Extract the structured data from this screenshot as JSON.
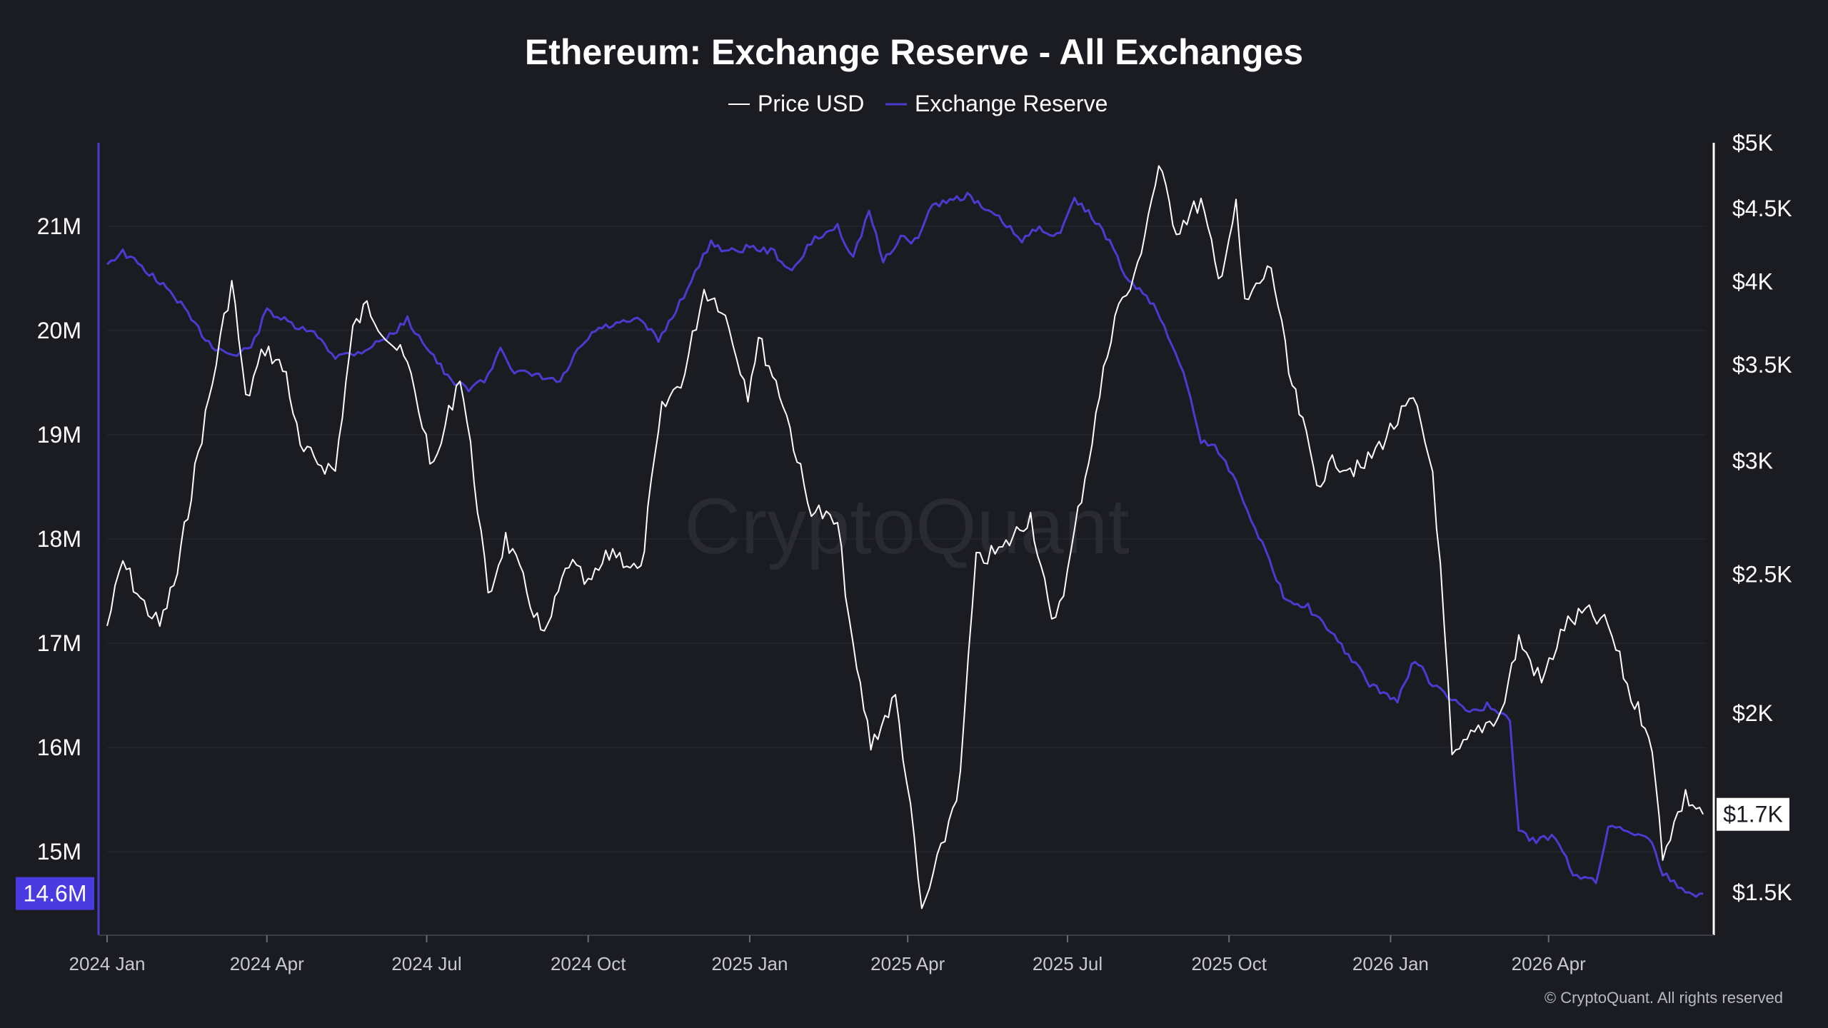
{
  "header": {
    "title": "Ethereum: Exchange Reserve - All Exchanges"
  },
  "watermark": "CryptoQuant",
  "credit": "© CryptoQuant. All rights reserved",
  "colors": {
    "background": "#1b1b22",
    "price": "#ffffff",
    "reserve": "#4a3bd1",
    "reserve_badge": "#4a3be0",
    "grid": "#2b2b34"
  },
  "chart_data": {
    "type": "line",
    "title": "Ethereum: Exchange Reserve - All Exchanges",
    "legend": {
      "placement": "top-center",
      "items": [
        "Price USD",
        "Exchange Reserve"
      ]
    },
    "x_ticks": [
      "2024 Jan",
      "2024 Apr",
      "2024 Jul",
      "2024 Oct",
      "2025 Jan",
      "2025 Apr",
      "2025 Jul",
      "2025 Oct",
      "2026 Jan",
      "2026 Apr"
    ],
    "x_range": [
      "2024-01-01",
      "2026-06-30"
    ],
    "left_axis": {
      "label": "",
      "ticks": [
        "15M",
        "16M",
        "17M",
        "18M",
        "19M",
        "20M",
        "21M"
      ],
      "tick_values": [
        15,
        16,
        17,
        18,
        19,
        20,
        21
      ],
      "range": [
        14.2,
        21.8
      ],
      "unit": "M",
      "current_badge": "14.6M"
    },
    "right_axis": {
      "label": "",
      "scale": "log",
      "ticks": [
        "$1.5K",
        "$2K",
        "$2.5K",
        "$3K",
        "$3.5K",
        "$4K",
        "$4.5K",
        "$5K"
      ],
      "tick_values": [
        1500,
        2000,
        2500,
        3000,
        3500,
        4000,
        4500,
        5000
      ],
      "range": [
        1400,
        5000
      ],
      "current_badge": "$1.7K"
    },
    "grid": true,
    "series": [
      {
        "name": "Price USD",
        "axis": "right",
        "points": [
          [
            "2024-01-01",
            2300
          ],
          [
            "2024-01-10",
            2550
          ],
          [
            "2024-01-20",
            2400
          ],
          [
            "2024-01-31",
            2300
          ],
          [
            "2024-02-10",
            2500
          ],
          [
            "2024-02-20",
            2950
          ],
          [
            "2024-03-01",
            3400
          ],
          [
            "2024-03-12",
            4000
          ],
          [
            "2024-03-20",
            3300
          ],
          [
            "2024-03-31",
            3600
          ],
          [
            "2024-04-12",
            3450
          ],
          [
            "2024-04-20",
            3050
          ],
          [
            "2024-04-30",
            3000
          ],
          [
            "2024-05-10",
            2950
          ],
          [
            "2024-05-20",
            3700
          ],
          [
            "2024-05-28",
            3850
          ],
          [
            "2024-06-10",
            3650
          ],
          [
            "2024-06-20",
            3500
          ],
          [
            "2024-07-05",
            2950
          ],
          [
            "2024-07-20",
            3450
          ],
          [
            "2024-08-05",
            2400
          ],
          [
            "2024-08-15",
            2650
          ],
          [
            "2024-09-06",
            2250
          ],
          [
            "2024-09-20",
            2550
          ],
          [
            "2024-10-01",
            2450
          ],
          [
            "2024-10-15",
            2600
          ],
          [
            "2024-10-31",
            2500
          ],
          [
            "2024-11-12",
            3250
          ],
          [
            "2024-11-25",
            3450
          ],
          [
            "2024-12-06",
            3950
          ],
          [
            "2024-12-16",
            3850
          ],
          [
            "2024-12-31",
            3350
          ],
          [
            "2025-01-06",
            3650
          ],
          [
            "2025-01-20",
            3300
          ],
          [
            "2025-02-03",
            2800
          ],
          [
            "2025-02-20",
            2700
          ],
          [
            "2025-03-01",
            2200
          ],
          [
            "2025-03-11",
            1900
          ],
          [
            "2025-03-25",
            2050
          ],
          [
            "2025-04-09",
            1450
          ],
          [
            "2025-04-20",
            1600
          ],
          [
            "2025-05-01",
            1800
          ],
          [
            "2025-05-10",
            2550
          ],
          [
            "2025-05-25",
            2600
          ],
          [
            "2025-06-10",
            2750
          ],
          [
            "2025-06-22",
            2300
          ],
          [
            "2025-07-01",
            2500
          ],
          [
            "2025-07-15",
            3100
          ],
          [
            "2025-07-28",
            3800
          ],
          [
            "2025-08-08",
            4000
          ],
          [
            "2025-08-22",
            4800
          ],
          [
            "2025-09-01",
            4350
          ],
          [
            "2025-09-15",
            4550
          ],
          [
            "2025-09-25",
            4000
          ],
          [
            "2025-10-05",
            4500
          ],
          [
            "2025-10-10",
            3850
          ],
          [
            "2025-10-25",
            4100
          ],
          [
            "2025-11-04",
            3450
          ],
          [
            "2025-11-20",
            2900
          ],
          [
            "2025-12-01",
            3000
          ],
          [
            "2025-12-15",
            2950
          ],
          [
            "2026-01-05",
            3200
          ],
          [
            "2026-01-14",
            3300
          ],
          [
            "2026-01-25",
            2950
          ],
          [
            "2026-02-05",
            1850
          ],
          [
            "2026-02-20",
            1950
          ],
          [
            "2026-03-05",
            2000
          ],
          [
            "2026-03-15",
            2250
          ],
          [
            "2026-03-28",
            2100
          ],
          [
            "2026-04-10",
            2300
          ],
          [
            "2026-04-22",
            2350
          ],
          [
            "2026-05-05",
            2300
          ],
          [
            "2026-05-18",
            2050
          ],
          [
            "2026-05-28",
            1950
          ],
          [
            "2026-06-05",
            1600
          ],
          [
            "2026-06-18",
            1750
          ],
          [
            "2026-06-28",
            1700
          ]
        ]
      },
      {
        "name": "Exchange Reserve",
        "axis": "left",
        "points": [
          [
            "2024-01-01",
            20.65
          ],
          [
            "2024-01-10",
            20.75
          ],
          [
            "2024-01-25",
            20.55
          ],
          [
            "2024-02-10",
            20.3
          ],
          [
            "2024-02-20",
            20.05
          ],
          [
            "2024-03-01",
            19.85
          ],
          [
            "2024-03-15",
            19.75
          ],
          [
            "2024-03-25",
            19.9
          ],
          [
            "2024-04-01",
            20.2
          ],
          [
            "2024-04-15",
            20.05
          ],
          [
            "2024-04-30",
            19.95
          ],
          [
            "2024-05-10",
            19.75
          ],
          [
            "2024-05-25",
            19.8
          ],
          [
            "2024-06-10",
            19.95
          ],
          [
            "2024-06-20",
            20.1
          ],
          [
            "2024-07-01",
            19.85
          ],
          [
            "2024-07-15",
            19.5
          ],
          [
            "2024-07-25",
            19.45
          ],
          [
            "2024-08-05",
            19.55
          ],
          [
            "2024-08-12",
            19.85
          ],
          [
            "2024-08-20",
            19.6
          ],
          [
            "2024-09-05",
            19.55
          ],
          [
            "2024-09-15",
            19.5
          ],
          [
            "2024-09-25",
            19.8
          ],
          [
            "2024-10-05",
            20.0
          ],
          [
            "2024-10-15",
            20.05
          ],
          [
            "2024-10-31",
            20.1
          ],
          [
            "2024-11-10",
            19.9
          ],
          [
            "2024-11-20",
            20.2
          ],
          [
            "2024-12-01",
            20.55
          ],
          [
            "2024-12-10",
            20.85
          ],
          [
            "2024-12-20",
            20.75
          ],
          [
            "2025-01-01",
            20.8
          ],
          [
            "2025-01-15",
            20.75
          ],
          [
            "2025-01-25",
            20.55
          ],
          [
            "2025-02-05",
            20.85
          ],
          [
            "2025-02-20",
            21.0
          ],
          [
            "2025-03-01",
            20.7
          ],
          [
            "2025-03-10",
            21.15
          ],
          [
            "2025-03-18",
            20.65
          ],
          [
            "2025-03-28",
            20.9
          ],
          [
            "2025-04-05",
            20.85
          ],
          [
            "2025-04-15",
            21.2
          ],
          [
            "2025-04-25",
            21.25
          ],
          [
            "2025-05-05",
            21.3
          ],
          [
            "2025-05-15",
            21.15
          ],
          [
            "2025-05-25",
            21.05
          ],
          [
            "2025-06-05",
            20.85
          ],
          [
            "2025-06-15",
            21.0
          ],
          [
            "2025-06-25",
            20.9
          ],
          [
            "2025-07-05",
            21.25
          ],
          [
            "2025-07-15",
            21.1
          ],
          [
            "2025-07-25",
            20.85
          ],
          [
            "2025-08-05",
            20.45
          ],
          [
            "2025-08-15",
            20.35
          ],
          [
            "2025-08-25",
            20.05
          ],
          [
            "2025-09-05",
            19.6
          ],
          [
            "2025-09-15",
            18.95
          ],
          [
            "2025-09-25",
            18.85
          ],
          [
            "2025-10-05",
            18.55
          ],
          [
            "2025-10-20",
            17.95
          ],
          [
            "2025-11-01",
            17.45
          ],
          [
            "2025-11-15",
            17.35
          ],
          [
            "2025-11-30",
            17.05
          ],
          [
            "2025-12-10",
            16.85
          ],
          [
            "2025-12-20",
            16.6
          ],
          [
            "2026-01-05",
            16.45
          ],
          [
            "2026-01-15",
            16.85
          ],
          [
            "2026-01-25",
            16.6
          ],
          [
            "2026-02-05",
            16.45
          ],
          [
            "2026-02-15",
            16.35
          ],
          [
            "2026-02-25",
            16.4
          ],
          [
            "2026-03-10",
            16.25
          ],
          [
            "2026-03-15",
            15.2
          ],
          [
            "2026-03-25",
            15.1
          ],
          [
            "2026-04-05",
            15.15
          ],
          [
            "2026-04-15",
            14.8
          ],
          [
            "2026-04-28",
            14.7
          ],
          [
            "2026-05-05",
            15.25
          ],
          [
            "2026-05-18",
            15.2
          ],
          [
            "2026-05-28",
            15.15
          ],
          [
            "2026-06-05",
            14.8
          ],
          [
            "2026-06-18",
            14.6
          ],
          [
            "2026-06-28",
            14.6
          ]
        ]
      }
    ]
  }
}
